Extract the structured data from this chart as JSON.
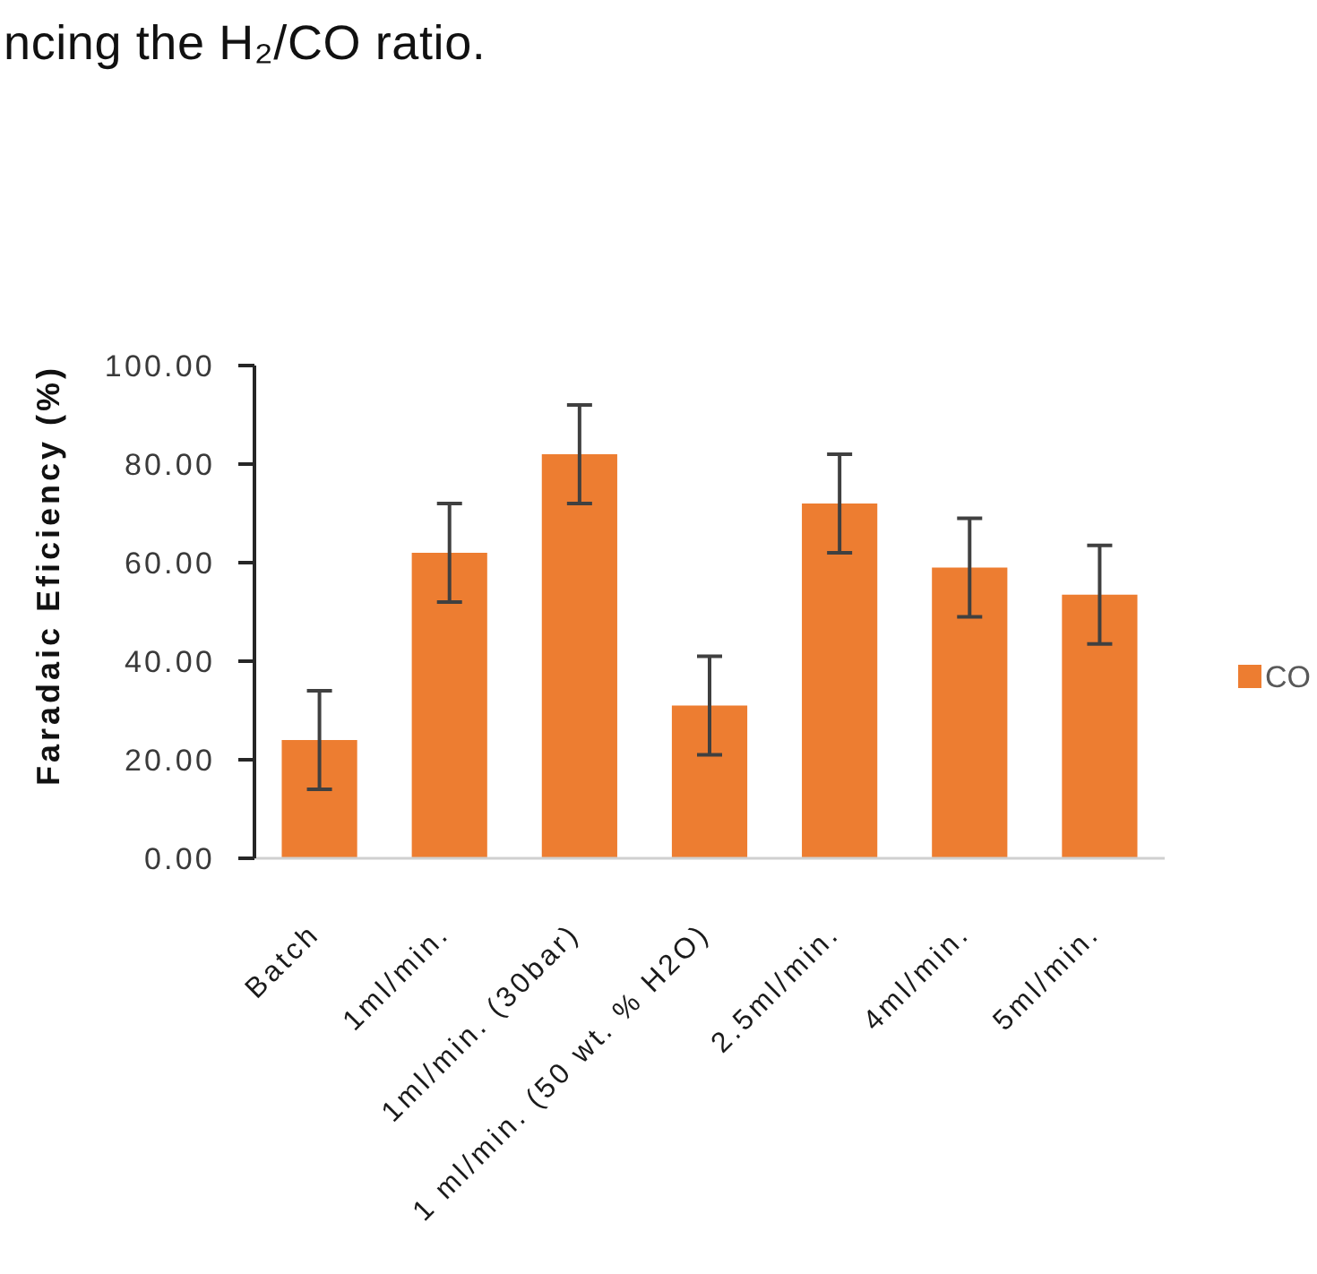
{
  "chart_data": {
    "type": "bar",
    "categories": [
      "Batch",
      "1ml/min.",
      "1ml/min. (30bar)",
      "1 ml/min. (50 wt. % H2O)",
      "2.5ml/min.",
      "4ml/min.",
      "5ml/min."
    ],
    "series": [
      {
        "name": "CO",
        "color": "#ed7d31",
        "values": [
          24,
          62,
          82,
          31,
          72,
          59,
          53.5
        ],
        "errors": [
          10,
          10,
          10,
          10,
          10,
          10,
          10
        ]
      }
    ],
    "ylabel": "Faradaic Eficiency (%)",
    "ylim": [
      0,
      100
    ],
    "yticks": [
      {
        "value": 0,
        "label": "0.00"
      },
      {
        "value": 20,
        "label": "20.00"
      },
      {
        "value": 40,
        "label": "40.00"
      },
      {
        "value": 60,
        "label": "60.00"
      },
      {
        "value": 80,
        "label": "80.00"
      },
      {
        "value": 100,
        "label": "100.00"
      }
    ],
    "grid": false,
    "legend": "right",
    "annotations": [
      "ncing the H₂/CO ratio."
    ]
  }
}
